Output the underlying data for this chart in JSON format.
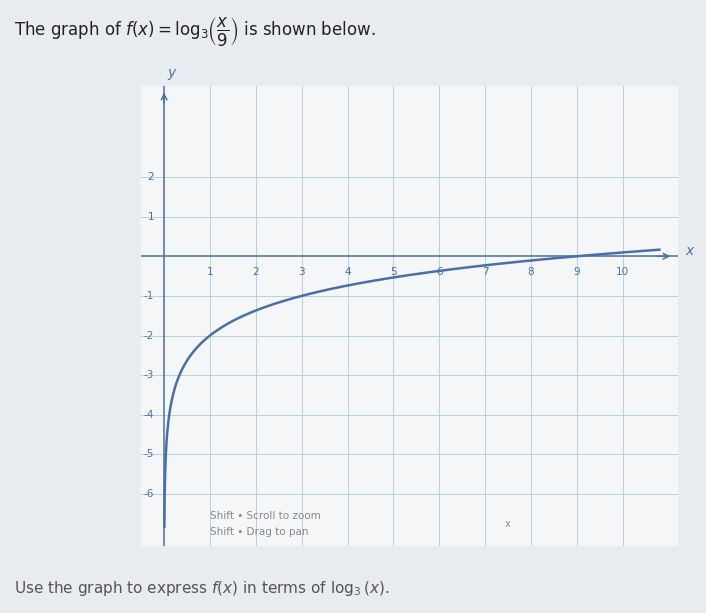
{
  "title_text": "The graph of $f(x) = \\log_3\\!\\left(\\dfrac{x}{9}\\right)$ is shown below.",
  "bottom_text": "Use the graph to express $f(x)$ in terms of $\\log_3(x)$.",
  "hint_text1": "Shift • Scroll to zoom",
  "hint_text2": "Shift • Drag to pan",
  "xlabel": "$x$",
  "ylabel": "$y$",
  "xlim": [
    -0.5,
    11.2
  ],
  "ylim": [
    -7.3,
    4.3
  ],
  "xticks": [
    1,
    2,
    3,
    4,
    5,
    6,
    7,
    8,
    9,
    10
  ],
  "yticks": [
    -6,
    -5,
    -4,
    -3,
    -2,
    -1,
    1,
    2
  ],
  "curve_color": "#4a6fa5",
  "curve_lw": 1.8,
  "grid_color": "#b8cfe0",
  "grid_lw": 0.7,
  "background_color": "#e8ecf0",
  "plot_bg_color": "#f5f6f8",
  "axis_color": "#4a6fa5",
  "tick_label_color": "#4a6fa5",
  "title_color": "#222222",
  "bottom_color": "#555555",
  "hint_color": "#888888"
}
